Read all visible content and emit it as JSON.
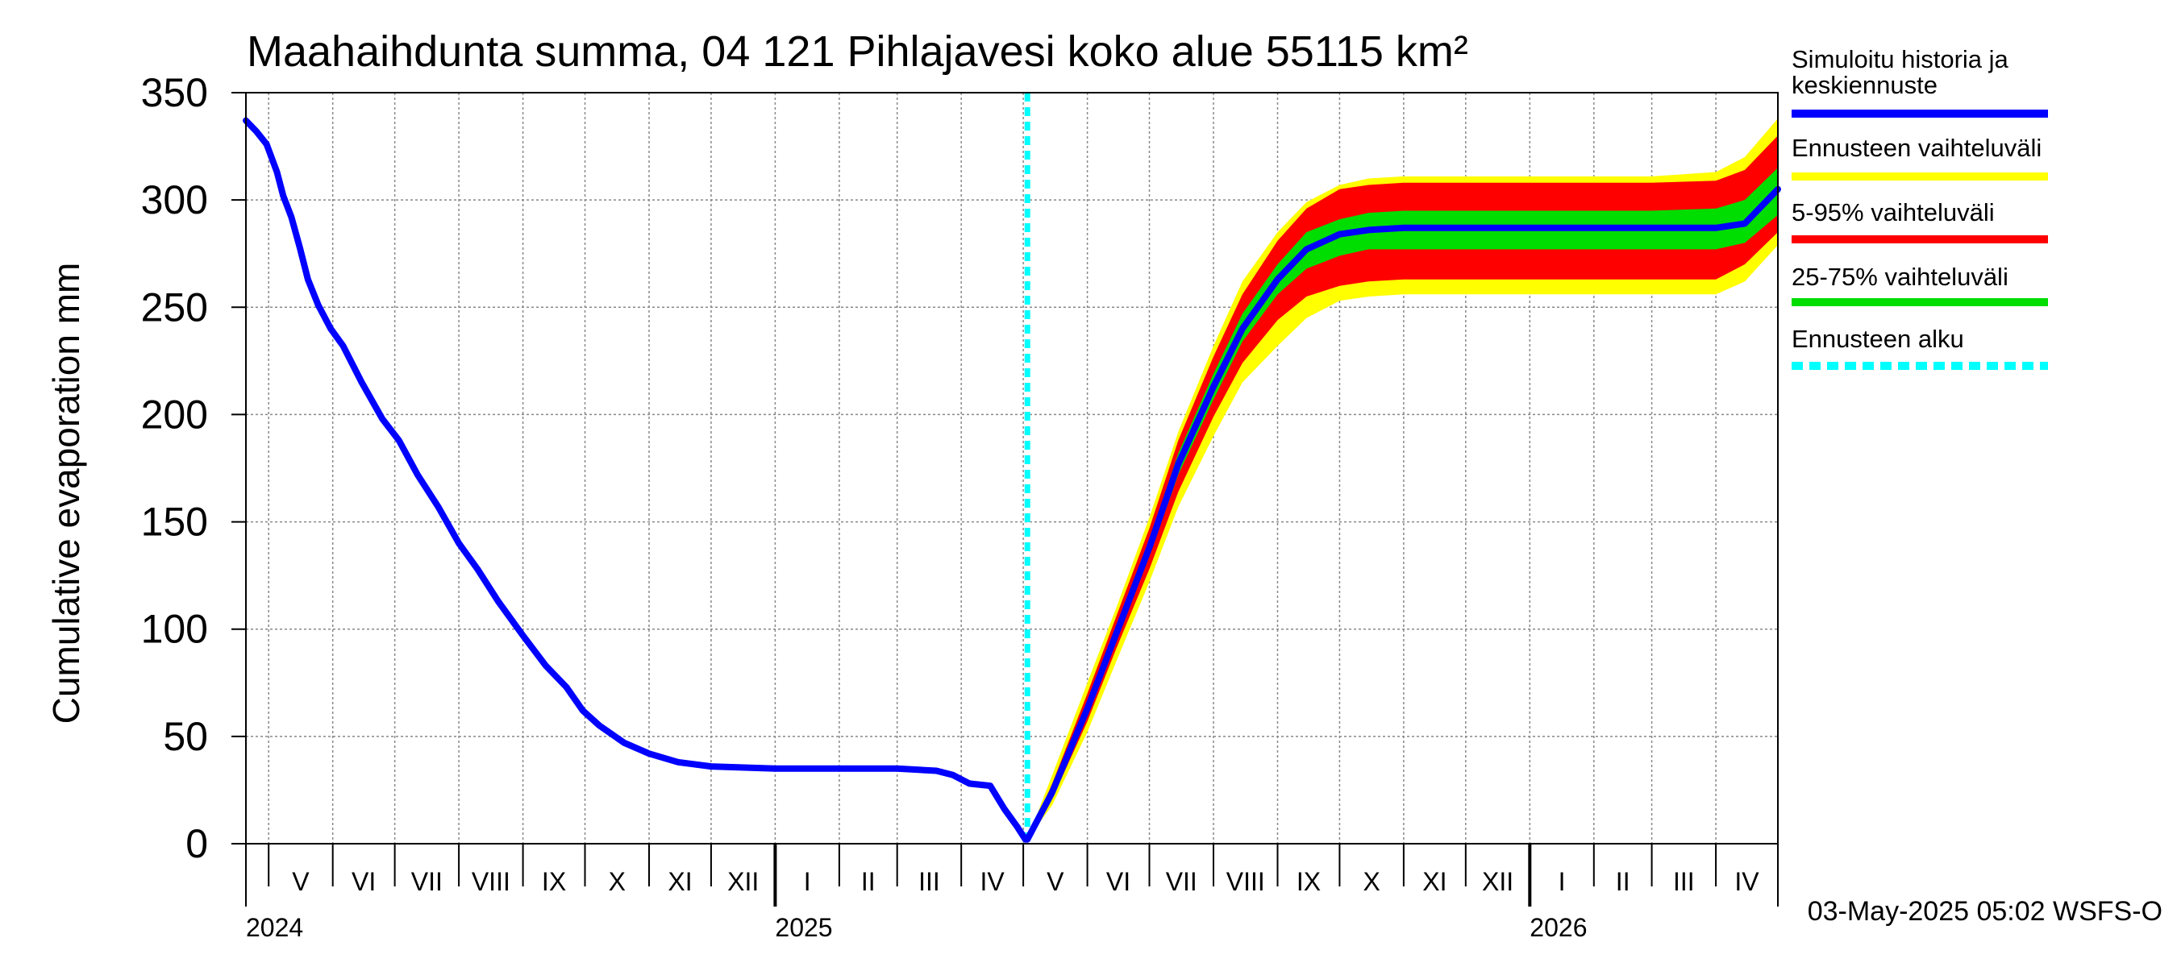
{
  "chart_data": {
    "type": "area",
    "title": "Maahaihdunta summa, 04 121 Pihlajavesi koko alue 55115 km²",
    "ylabel": "Cumulative evaporation   mm",
    "xlabel": "",
    "ylim": [
      0,
      350
    ],
    "xlim": [
      "2024-04-20",
      "2026-05-01"
    ],
    "y_ticks": [
      0,
      50,
      100,
      150,
      200,
      250,
      300,
      350
    ],
    "grid": true,
    "month_labels": [
      {
        "start": "2024-04-20",
        "end": "2024-05-01",
        "label": ""
      },
      {
        "start": "2024-05-01",
        "end": "2024-06-01",
        "label": "V"
      },
      {
        "start": "2024-06-01",
        "end": "2024-07-01",
        "label": "VI"
      },
      {
        "start": "2024-07-01",
        "end": "2024-08-01",
        "label": "VII"
      },
      {
        "start": "2024-08-01",
        "end": "2024-09-01",
        "label": "VIII"
      },
      {
        "start": "2024-09-01",
        "end": "2024-10-01",
        "label": "IX"
      },
      {
        "start": "2024-10-01",
        "end": "2024-11-01",
        "label": "X"
      },
      {
        "start": "2024-11-01",
        "end": "2024-12-01",
        "label": "XI"
      },
      {
        "start": "2024-12-01",
        "end": "2025-01-01",
        "label": "XII"
      },
      {
        "start": "2025-01-01",
        "end": "2025-02-01",
        "label": "I"
      },
      {
        "start": "2025-02-01",
        "end": "2025-03-01",
        "label": "II"
      },
      {
        "start": "2025-03-01",
        "end": "2025-04-01",
        "label": "III"
      },
      {
        "start": "2025-04-01",
        "end": "2025-05-01",
        "label": "IV"
      },
      {
        "start": "2025-05-01",
        "end": "2025-06-01",
        "label": "V"
      },
      {
        "start": "2025-06-01",
        "end": "2025-07-01",
        "label": "VI"
      },
      {
        "start": "2025-07-01",
        "end": "2025-08-01",
        "label": "VII"
      },
      {
        "start": "2025-08-01",
        "end": "2025-09-01",
        "label": "VIII"
      },
      {
        "start": "2025-09-01",
        "end": "2025-10-01",
        "label": "IX"
      },
      {
        "start": "2025-10-01",
        "end": "2025-11-01",
        "label": "X"
      },
      {
        "start": "2025-11-01",
        "end": "2025-12-01",
        "label": "XI"
      },
      {
        "start": "2025-12-01",
        "end": "2026-01-01",
        "label": "XII"
      },
      {
        "start": "2026-01-01",
        "end": "2026-02-01",
        "label": "I"
      },
      {
        "start": "2026-02-01",
        "end": "2026-03-01",
        "label": "II"
      },
      {
        "start": "2026-03-01",
        "end": "2026-04-01",
        "label": "III"
      },
      {
        "start": "2026-04-01",
        "end": "2026-05-01",
        "label": "IV"
      }
    ],
    "year_labels": [
      {
        "date": "2024-04-20",
        "label": "2024"
      },
      {
        "date": "2025-01-01",
        "label": "2025"
      },
      {
        "date": "2026-01-01",
        "label": "2026"
      }
    ],
    "forecast_start": "2025-05-03",
    "history": {
      "name": "Simuloitu historia ja keskiennuste",
      "color": "#0000ff",
      "points": [
        [
          "2024-04-20",
          337
        ],
        [
          "2024-04-25",
          332
        ],
        [
          "2024-04-30",
          326
        ],
        [
          "2024-05-05",
          313
        ],
        [
          "2024-05-08",
          302
        ],
        [
          "2024-05-12",
          292
        ],
        [
          "2024-05-16",
          278
        ],
        [
          "2024-05-20",
          263
        ],
        [
          "2024-05-25",
          251
        ],
        [
          "2024-05-31",
          240
        ],
        [
          "2024-06-06",
          232
        ],
        [
          "2024-06-15",
          215
        ],
        [
          "2024-06-25",
          198
        ],
        [
          "2024-07-03",
          188
        ],
        [
          "2024-07-12",
          172
        ],
        [
          "2024-07-22",
          157
        ],
        [
          "2024-08-01",
          140
        ],
        [
          "2024-08-10",
          128
        ],
        [
          "2024-08-20",
          113
        ],
        [
          "2024-09-01",
          97
        ],
        [
          "2024-09-12",
          83
        ],
        [
          "2024-09-22",
          73
        ],
        [
          "2024-09-30",
          62
        ],
        [
          "2024-10-08",
          55
        ],
        [
          "2024-10-20",
          47
        ],
        [
          "2024-11-01",
          42
        ],
        [
          "2024-11-15",
          38
        ],
        [
          "2024-12-01",
          36
        ],
        [
          "2025-01-01",
          35
        ],
        [
          "2025-02-01",
          35
        ],
        [
          "2025-03-01",
          35
        ],
        [
          "2025-03-20",
          34
        ],
        [
          "2025-03-28",
          32
        ],
        [
          "2025-04-05",
          28
        ],
        [
          "2025-04-15",
          27
        ],
        [
          "2025-04-22",
          16
        ],
        [
          "2025-04-28",
          8
        ],
        [
          "2025-05-02",
          2
        ]
      ]
    },
    "forecast_dates": [
      "2025-05-03",
      "2025-05-15",
      "2025-06-01",
      "2025-06-15",
      "2025-07-01",
      "2025-07-15",
      "2025-08-01",
      "2025-08-15",
      "2025-09-01",
      "2025-09-15",
      "2025-10-01",
      "2025-10-15",
      "2025-11-01",
      "2025-12-01",
      "2026-01-01",
      "2026-02-01",
      "2026-03-01",
      "2026-04-01",
      "2026-04-15",
      "2026-05-01"
    ],
    "series": [
      {
        "name": "Ennusteen vaihteluväli",
        "color": "#ffff00",
        "upper": [
          2,
          32,
          75,
          110,
          152,
          192,
          232,
          262,
          285,
          299,
          307,
          310,
          311,
          311,
          311,
          311,
          311,
          313,
          320,
          338
        ],
        "lower": [
          2,
          18,
          52,
          85,
          122,
          157,
          190,
          215,
          232,
          245,
          253,
          255,
          256,
          256,
          256,
          256,
          256,
          256,
          262,
          279
        ]
      },
      {
        "name": "5-95% vaihteluväli",
        "color": "#ff0000",
        "upper": [
          2,
          28,
          70,
          106,
          147,
          188,
          227,
          256,
          281,
          296,
          305,
          307,
          308,
          308,
          308,
          308,
          308,
          309,
          314,
          330
        ],
        "lower": [
          2,
          21,
          57,
          91,
          128,
          164,
          199,
          224,
          244,
          255,
          260,
          262,
          263,
          263,
          263,
          263,
          263,
          263,
          270,
          285
        ]
      },
      {
        "name": "25-75% vaihteluväli",
        "color": "#00dd00",
        "upper": [
          2,
          26,
          66,
          101,
          142,
          182,
          219,
          247,
          270,
          285,
          291,
          294,
          295,
          295,
          295,
          295,
          295,
          296,
          300,
          315
        ],
        "lower": [
          2,
          23,
          61,
          95,
          134,
          172,
          207,
          234,
          256,
          268,
          274,
          277,
          277,
          277,
          277,
          277,
          277,
          277,
          280,
          293
        ]
      }
    ],
    "median": {
      "name": "Simuloitu historia ja keskiennuste",
      "color": "#0000ff",
      "values": [
        2,
        24,
        63,
        98,
        138,
        177,
        213,
        240,
        263,
        277,
        284,
        286,
        287,
        287,
        287,
        287,
        287,
        287,
        289,
        305
      ]
    },
    "legend": {
      "placement": "right",
      "items": [
        {
          "label": "Simuloitu historia ja keskiennuste",
          "color": "#0000ff",
          "style": "solid"
        },
        {
          "label": "Ennusteen vaihteluväli",
          "color": "#ffff00",
          "style": "solid"
        },
        {
          "label": "5-95% vaihteluväli",
          "color": "#ff0000",
          "style": "solid"
        },
        {
          "label": "25-75% vaihteluväli",
          "color": "#00dd00",
          "style": "solid"
        },
        {
          "label": "Ennusteen alku",
          "color": "#00ffff",
          "style": "dashed"
        }
      ]
    },
    "timestamp": "03-May-2025 05:02 WSFS-O"
  }
}
